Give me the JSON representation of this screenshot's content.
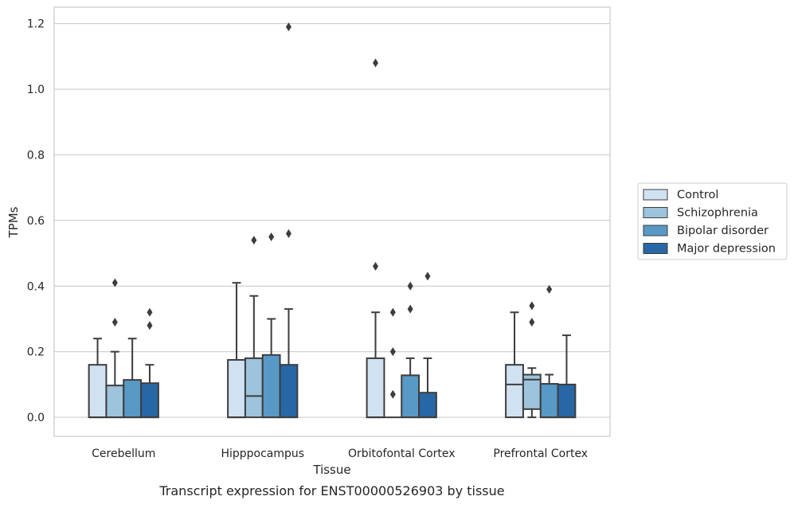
{
  "chart_data": {
    "type": "box",
    "title": "",
    "caption": "Transcript expression for ENST00000526903 by tissue",
    "xlabel": "Tissue",
    "ylabel": "TPMs",
    "ylim": [
      -0.058,
      1.25
    ],
    "yticks": [
      0.0,
      0.2,
      0.4,
      0.6,
      0.8,
      1.0,
      1.2
    ],
    "ytick_labels": [
      "0.0",
      "0.2",
      "0.4",
      "0.6",
      "0.8",
      "1.0",
      "1.2"
    ],
    "grid": "horizontal",
    "legend": "right, outside plot",
    "categories": [
      "Cerebellum",
      "Hipppocampus",
      "Orbitofontal Cortex",
      "Prefrontal Cortex"
    ],
    "series": [
      {
        "name": "Control",
        "color": "#d0e1f2",
        "boxes": [
          {
            "q1": 0.0,
            "median": 0.0,
            "q3": 0.16,
            "whisker_low": 0.0,
            "whisker_high": 0.24,
            "outliers": []
          },
          {
            "q1": 0.0,
            "median": 0.0,
            "q3": 0.175,
            "whisker_low": 0.0,
            "whisker_high": 0.41,
            "outliers": []
          },
          {
            "q1": 0.0,
            "median": 0.0,
            "q3": 0.18,
            "whisker_low": 0.0,
            "whisker_high": 0.32,
            "outliers": [
              0.46,
              1.08
            ]
          },
          {
            "q1": 0.0,
            "median": 0.1,
            "q3": 0.16,
            "whisker_low": 0.0,
            "whisker_high": 0.32,
            "outliers": []
          }
        ]
      },
      {
        "name": "Schizophrenia",
        "color": "#9dc4dc",
        "boxes": [
          {
            "q1": 0.0,
            "median": 0.0,
            "q3": 0.097,
            "whisker_low": 0.0,
            "whisker_high": 0.2,
            "outliers": [
              0.29,
              0.41
            ]
          },
          {
            "q1": 0.0,
            "median": 0.065,
            "q3": 0.18,
            "whisker_low": 0.0,
            "whisker_high": 0.37,
            "outliers": [
              0.54
            ]
          },
          {
            "q1": 0.0,
            "median": 0.0,
            "q3": 0.0,
            "whisker_low": 0.0,
            "whisker_high": 0.0,
            "outliers": [
              0.07,
              0.2,
              0.32
            ]
          },
          {
            "q1": 0.025,
            "median": 0.115,
            "q3": 0.13,
            "whisker_low": 0.0,
            "whisker_high": 0.15,
            "outliers": [
              0.29,
              0.34
            ]
          }
        ]
      },
      {
        "name": "Bipolar disorder",
        "color": "#5899c5",
        "boxes": [
          {
            "q1": 0.0,
            "median": 0.0,
            "q3": 0.114,
            "whisker_low": 0.0,
            "whisker_high": 0.24,
            "outliers": []
          },
          {
            "q1": 0.0,
            "median": 0.0,
            "q3": 0.19,
            "whisker_low": 0.0,
            "whisker_high": 0.3,
            "outliers": [
              0.55
            ]
          },
          {
            "q1": 0.0,
            "median": 0.0,
            "q3": 0.128,
            "whisker_low": 0.0,
            "whisker_high": 0.18,
            "outliers": [
              0.33,
              0.4
            ]
          },
          {
            "q1": 0.0,
            "median": 0.0,
            "q3": 0.102,
            "whisker_low": 0.0,
            "whisker_high": 0.13,
            "outliers": [
              0.39
            ]
          }
        ]
      },
      {
        "name": "Major depression",
        "color": "#2867a5",
        "boxes": [
          {
            "q1": 0.0,
            "median": 0.0,
            "q3": 0.104,
            "whisker_low": 0.0,
            "whisker_high": 0.16,
            "outliers": [
              0.28,
              0.32
            ]
          },
          {
            "q1": 0.0,
            "median": 0.0,
            "q3": 0.16,
            "whisker_low": 0.0,
            "whisker_high": 0.33,
            "outliers": [
              0.56,
              1.19
            ]
          },
          {
            "q1": 0.0,
            "median": 0.0,
            "q3": 0.075,
            "whisker_low": 0.0,
            "whisker_high": 0.18,
            "outliers": [
              0.43
            ]
          },
          {
            "q1": 0.0,
            "median": 0.0,
            "q3": 0.1,
            "whisker_low": 0.0,
            "whisker_high": 0.25,
            "outliers": []
          }
        ]
      }
    ]
  }
}
